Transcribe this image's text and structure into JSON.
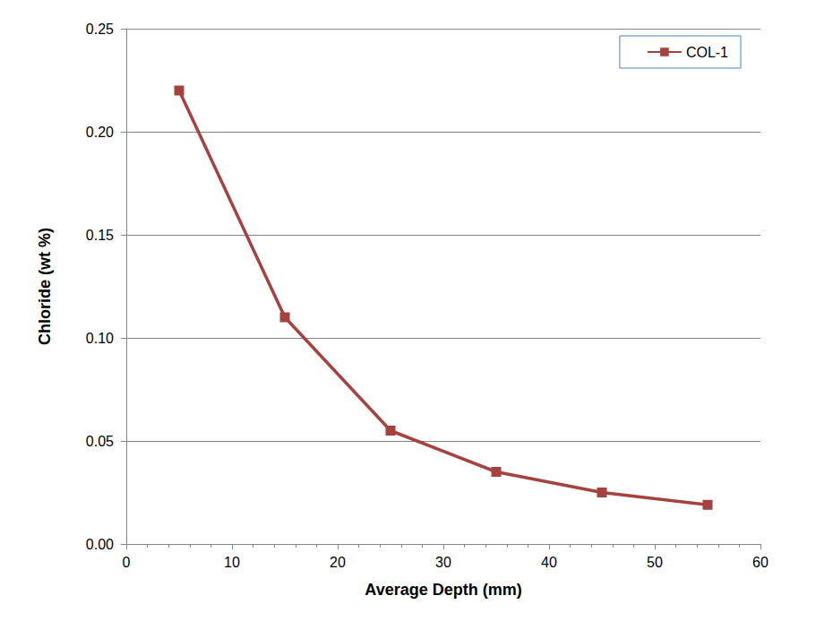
{
  "chart_data": {
    "type": "line",
    "x_label": "Average Depth (mm)",
    "y_label": "Chloride (wt %)",
    "series": [
      {
        "name": "COL-1",
        "color": "#a5423f",
        "marker": "square",
        "x": [
          5,
          15,
          25,
          35,
          45,
          55
        ],
        "values": [
          0.22,
          0.11,
          0.055,
          0.035,
          0.025,
          0.019
        ]
      }
    ],
    "xlim": [
      0,
      60
    ],
    "xticks": [
      0,
      10,
      20,
      30,
      40,
      50,
      60
    ],
    "ylim": [
      0,
      0.25
    ],
    "yticks": [
      {
        "value": 0,
        "label": "0.00"
      },
      {
        "value": 0.05,
        "label": "0.05"
      },
      {
        "value": 0.1,
        "label": "0.10"
      },
      {
        "value": 0.15,
        "label": "0.15"
      },
      {
        "value": 0.2,
        "label": "0.20"
      },
      {
        "value": 0.25,
        "label": "0.25"
      }
    ],
    "grid": true,
    "legend": "upper right"
  }
}
